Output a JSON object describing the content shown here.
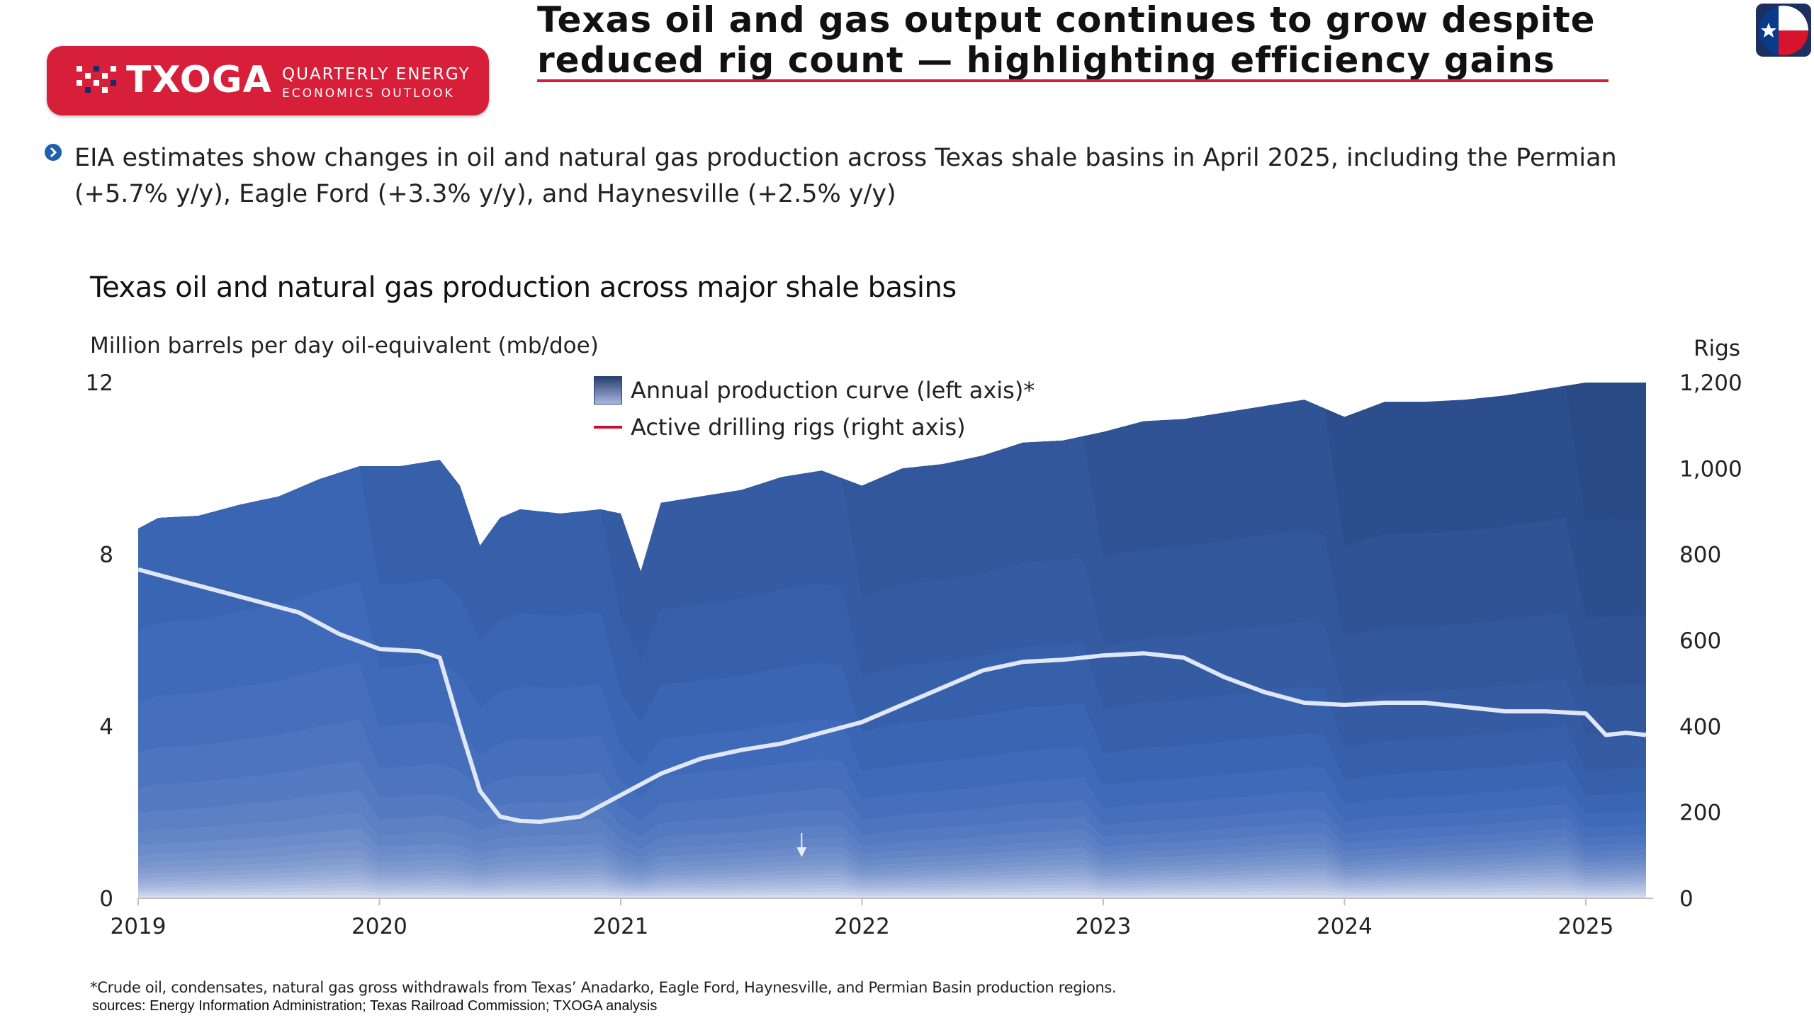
{
  "header": {
    "logo_brand": "TXOGA",
    "logo_tagline_1": "QUARTERLY ENERGY",
    "logo_tagline_2": "ECONOMICS OUTLOOK",
    "title_line_1": "Texas oil and gas output continues to grow despite",
    "title_line_2": "reduced rig count — highlighting efficiency gains",
    "accent_color": "#d71f3a"
  },
  "bullet": {
    "icon": "chevron-right-icon",
    "text": "EIA estimates show changes in oil and natural gas production across Texas shale basins in April 2025, including the Permian (+5.7% y/y), Eagle Ford (+3.3% y/y), and Haynesville (+2.5% y/y)"
  },
  "chart_data": {
    "type": "area",
    "title": "Texas oil and natural gas production across major shale basins",
    "ylabel": "Million barrels per day oil-equivalent (mb/doe)",
    "y2label": "Rigs",
    "ylim": [
      0,
      12
    ],
    "y2lim": [
      0,
      1200
    ],
    "yticks": [
      "0",
      "4",
      "8",
      "12"
    ],
    "y2ticks": [
      "0",
      "200",
      "400",
      "600",
      "800",
      "1,000",
      "1,200"
    ],
    "xticks": [
      "2019",
      "2020",
      "2021",
      "2022",
      "2023",
      "2024",
      "2025"
    ],
    "x_range": [
      "2019-01",
      "2025-04"
    ],
    "legend": [
      {
        "label": "Annual production curve (left axis)*",
        "kind": "area"
      },
      {
        "label": "Active drilling rigs (right axis)",
        "kind": "line",
        "color": "#c8102e"
      }
    ],
    "legend_position": "top-center",
    "grid": false,
    "colors": {
      "darkest": "#2a4a85",
      "mid": "#3c68b8",
      "light": "#d7dcef"
    },
    "total_production": [
      [
        "2019-01",
        8.6
      ],
      [
        "2019-02",
        8.85
      ],
      [
        "2019-04",
        8.9
      ],
      [
        "2019-06",
        9.15
      ],
      [
        "2019-08",
        9.35
      ],
      [
        "2019-10",
        9.75
      ],
      [
        "2019-12",
        10.05
      ],
      [
        "2020-02",
        10.05
      ],
      [
        "2020-04",
        10.2
      ],
      [
        "2020-05",
        9.6
      ],
      [
        "2020-06",
        8.2
      ],
      [
        "2020-07",
        8.85
      ],
      [
        "2020-08",
        9.05
      ],
      [
        "2020-10",
        8.95
      ],
      [
        "2020-12",
        9.05
      ],
      [
        "2021-01",
        8.95
      ],
      [
        "2021-02",
        7.6
      ],
      [
        "2021-03",
        9.2
      ],
      [
        "2021-05",
        9.35
      ],
      [
        "2021-07",
        9.5
      ],
      [
        "2021-09",
        9.8
      ],
      [
        "2021-11",
        9.95
      ],
      [
        "2022-01",
        9.6
      ],
      [
        "2022-03",
        10.0
      ],
      [
        "2022-05",
        10.1
      ],
      [
        "2022-07",
        10.3
      ],
      [
        "2022-09",
        10.6
      ],
      [
        "2022-11",
        10.65
      ],
      [
        "2023-01",
        10.85
      ],
      [
        "2023-03",
        11.1
      ],
      [
        "2023-05",
        11.15
      ],
      [
        "2023-07",
        11.3
      ],
      [
        "2023-09",
        11.45
      ],
      [
        "2023-11",
        11.6
      ],
      [
        "2024-01",
        11.2
      ],
      [
        "2024-03",
        11.55
      ],
      [
        "2024-05",
        11.55
      ],
      [
        "2024-07",
        11.6
      ],
      [
        "2024-09",
        11.7
      ],
      [
        "2024-11",
        11.85
      ],
      [
        "2025-01",
        12.0
      ],
      [
        "2025-04",
        12.0
      ]
    ],
    "active_rigs": [
      [
        "2019-01",
        765
      ],
      [
        "2019-03",
        740
      ],
      [
        "2019-05",
        715
      ],
      [
        "2019-07",
        690
      ],
      [
        "2019-09",
        665
      ],
      [
        "2019-11",
        615
      ],
      [
        "2020-01",
        580
      ],
      [
        "2020-03",
        575
      ],
      [
        "2020-04",
        560
      ],
      [
        "2020-05",
        400
      ],
      [
        "2020-06",
        250
      ],
      [
        "2020-07",
        190
      ],
      [
        "2020-08",
        180
      ],
      [
        "2020-09",
        178
      ],
      [
        "2020-11",
        190
      ],
      [
        "2021-01",
        240
      ],
      [
        "2021-03",
        290
      ],
      [
        "2021-05",
        325
      ],
      [
        "2021-07",
        345
      ],
      [
        "2021-09",
        360
      ],
      [
        "2021-11",
        385
      ],
      [
        "2022-01",
        410
      ],
      [
        "2022-03",
        450
      ],
      [
        "2022-05",
        490
      ],
      [
        "2022-07",
        530
      ],
      [
        "2022-09",
        550
      ],
      [
        "2022-11",
        555
      ],
      [
        "2023-01",
        565
      ],
      [
        "2023-03",
        570
      ],
      [
        "2023-05",
        560
      ],
      [
        "2023-07",
        515
      ],
      [
        "2023-09",
        480
      ],
      [
        "2023-11",
        455
      ],
      [
        "2024-01",
        450
      ],
      [
        "2024-03",
        455
      ],
      [
        "2024-05",
        455
      ],
      [
        "2024-07",
        445
      ],
      [
        "2024-09",
        435
      ],
      [
        "2024-11",
        435
      ],
      [
        "2025-01",
        430
      ],
      [
        "2025-02",
        380
      ],
      [
        "2025-03",
        385
      ],
      [
        "2025-04",
        380
      ]
    ]
  },
  "footnote": "*Crude oil, condensates, natural gas gross withdrawals from Texas’ Anadarko, Eagle Ford, Haynesville, and Permian Basin production regions.",
  "sources": "sources: Energy Information Administration; Texas Railroad Commission; TXOGA analysis"
}
